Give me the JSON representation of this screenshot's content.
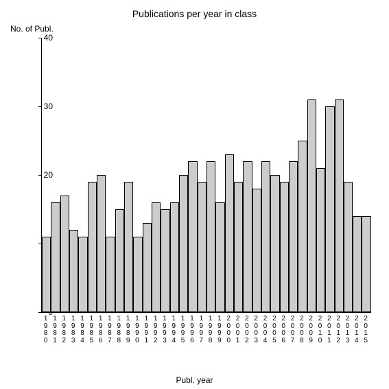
{
  "chart": {
    "type": "bar",
    "title": "Publications per year in class",
    "title_fontsize": 14,
    "y_axis_label": "No. of Publ.",
    "x_axis_label": "Publ. year",
    "label_fontsize": 12,
    "ylim": [
      0,
      40
    ],
    "yticks": [
      0,
      10,
      20,
      30,
      40
    ],
    "background_color": "#ffffff",
    "bar_color": "#cccccc",
    "bar_border_color": "#000000",
    "axis_color": "#000000",
    "text_color": "#000000",
    "categories": [
      "1980",
      "1981",
      "1982",
      "1983",
      "1984",
      "1985",
      "1986",
      "1987",
      "1988",
      "1989",
      "1990",
      "1991",
      "1992",
      "1993",
      "1994",
      "1995",
      "1996",
      "1997",
      "1998",
      "1999",
      "2000",
      "2001",
      "2002",
      "2003",
      "2004",
      "2005",
      "2006",
      "2007",
      "2008",
      "2009",
      "2010",
      "2011",
      "2012",
      "2013",
      "2014",
      "2015"
    ],
    "values": [
      11,
      16,
      17,
      12,
      11,
      19,
      20,
      11,
      15,
      19,
      11,
      13,
      16,
      15,
      16,
      20,
      22,
      19,
      22,
      16,
      23,
      19,
      22,
      18,
      22,
      20,
      19,
      22,
      25,
      31,
      21,
      30,
      31,
      19,
      14,
      14
    ]
  }
}
